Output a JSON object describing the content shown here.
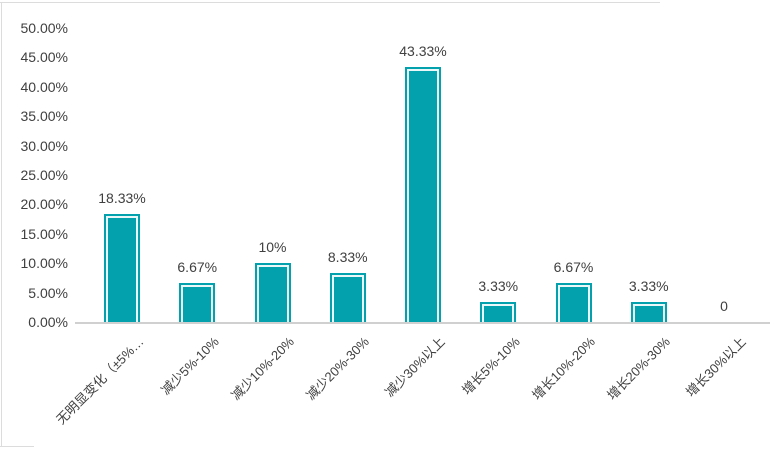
{
  "chart_data": {
    "type": "bar",
    "title": "",
    "xlabel": "",
    "ylabel": "",
    "categories": [
      "无明显变化（±5%…",
      "减少5%-10%",
      "减少10%-20%",
      "减少20%-30%",
      "减少30%以上",
      "增长5%-10%",
      "增长10%-20%",
      "增长20%-30%",
      "增长30%以上"
    ],
    "values": [
      18.33,
      6.67,
      10,
      8.33,
      43.33,
      3.33,
      6.67,
      3.33,
      0
    ],
    "data_labels": [
      "18.33%",
      "6.67%",
      "10%",
      "8.33%",
      "43.33%",
      "3.33%",
      "6.67%",
      "3.33%",
      "0"
    ],
    "y_axis": {
      "ticks": [
        {
          "label": "50.00%",
          "value": 50
        },
        {
          "label": "45.00%",
          "value": 45
        },
        {
          "label": "40.00%",
          "value": 40
        },
        {
          "label": "35.00%",
          "value": 35
        },
        {
          "label": "30.00%",
          "value": 30
        },
        {
          "label": "25.00%",
          "value": 25
        },
        {
          "label": "20.00%",
          "value": 20
        },
        {
          "label": "15.00%",
          "value": 15
        },
        {
          "label": "10.00%",
          "value": 10
        },
        {
          "label": "5.00%",
          "value": 5
        },
        {
          "label": "0.00%",
          "value": 0
        }
      ],
      "ylim": [
        0,
        50
      ]
    },
    "legend": null,
    "grid": false,
    "colors": {
      "bar": "#02a1ad",
      "bar_inner_stroke": "#ffffff",
      "text": "#404040",
      "axis_line": "#d0d0d0"
    }
  }
}
